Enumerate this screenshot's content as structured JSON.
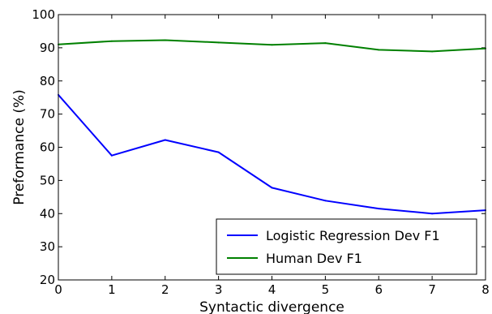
{
  "chart_data": {
    "type": "line",
    "title": "",
    "xlabel": "Syntactic divergence",
    "ylabel": "Preformance (%)",
    "xlim": [
      0,
      8
    ],
    "ylim": [
      20,
      100
    ],
    "x": [
      0,
      1,
      2,
      3,
      4,
      5,
      6,
      7,
      8
    ],
    "xticks": [
      "0",
      "1",
      "2",
      "3",
      "4",
      "5",
      "6",
      "7",
      "8"
    ],
    "yticks": [
      "20",
      "30",
      "40",
      "50",
      "60",
      "70",
      "80",
      "90",
      "100"
    ],
    "grid": false,
    "legend_position": "lower-right",
    "series": [
      {
        "name": "Logistic Regression Dev F1",
        "color": "#0000ff",
        "values": [
          75.8,
          57.5,
          62.2,
          58.5,
          47.8,
          43.9,
          41.5,
          40.0,
          41.0
        ]
      },
      {
        "name": "Human Dev F1",
        "color": "#008000",
        "values": [
          91.0,
          92.0,
          92.3,
          91.6,
          90.9,
          91.4,
          89.4,
          88.9,
          89.8
        ]
      }
    ]
  }
}
